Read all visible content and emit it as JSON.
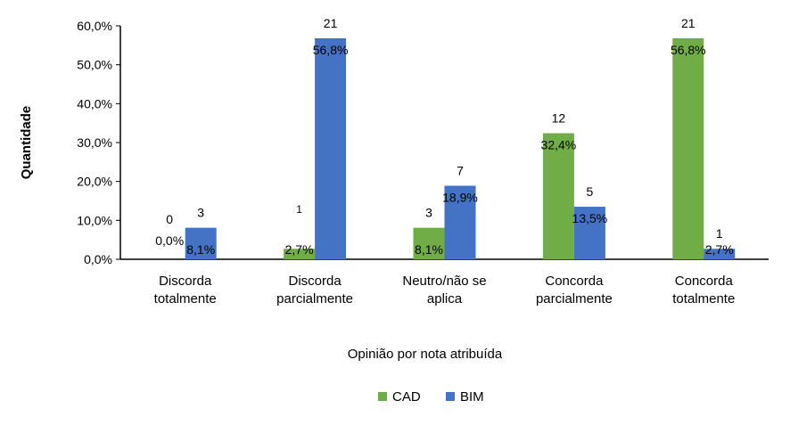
{
  "chart_data": {
    "type": "bar",
    "title": "",
    "xlabel": "Opinião por nota atribuída",
    "ylabel": "Quantidade",
    "ylim": [
      0,
      60
    ],
    "yticks": [
      "0,0%",
      "10,0%",
      "20,0%",
      "30,0%",
      "40,0%",
      "50,0%",
      "60,0%"
    ],
    "categories": [
      [
        "Discorda",
        "totalmente"
      ],
      [
        "Discorda",
        "parcialmente"
      ],
      [
        "Neutro/não se",
        "aplica"
      ],
      [
        "Concorda",
        "parcialmente"
      ],
      [
        "Concorda",
        "totalmente"
      ]
    ],
    "series": [
      {
        "name": "CAD",
        "color": "#70ad47",
        "values": [
          0.0,
          2.7,
          8.1,
          32.4,
          56.8
        ],
        "pct_labels": [
          "0,0%",
          "2,7%",
          "8,1%",
          "32,4%",
          "56,8%"
        ],
        "counts": [
          "0",
          "1",
          "3",
          "12",
          "21"
        ]
      },
      {
        "name": "BIM",
        "color": "#4472c4",
        "values": [
          8.1,
          56.8,
          18.9,
          13.5,
          2.7
        ],
        "pct_labels": [
          "8,1%",
          "56,8%",
          "18,9%",
          "13,5%",
          "2,7%"
        ],
        "counts": [
          "3",
          "21",
          "7",
          "5",
          "1"
        ]
      }
    ],
    "legend_position": "bottom",
    "grid": false
  }
}
